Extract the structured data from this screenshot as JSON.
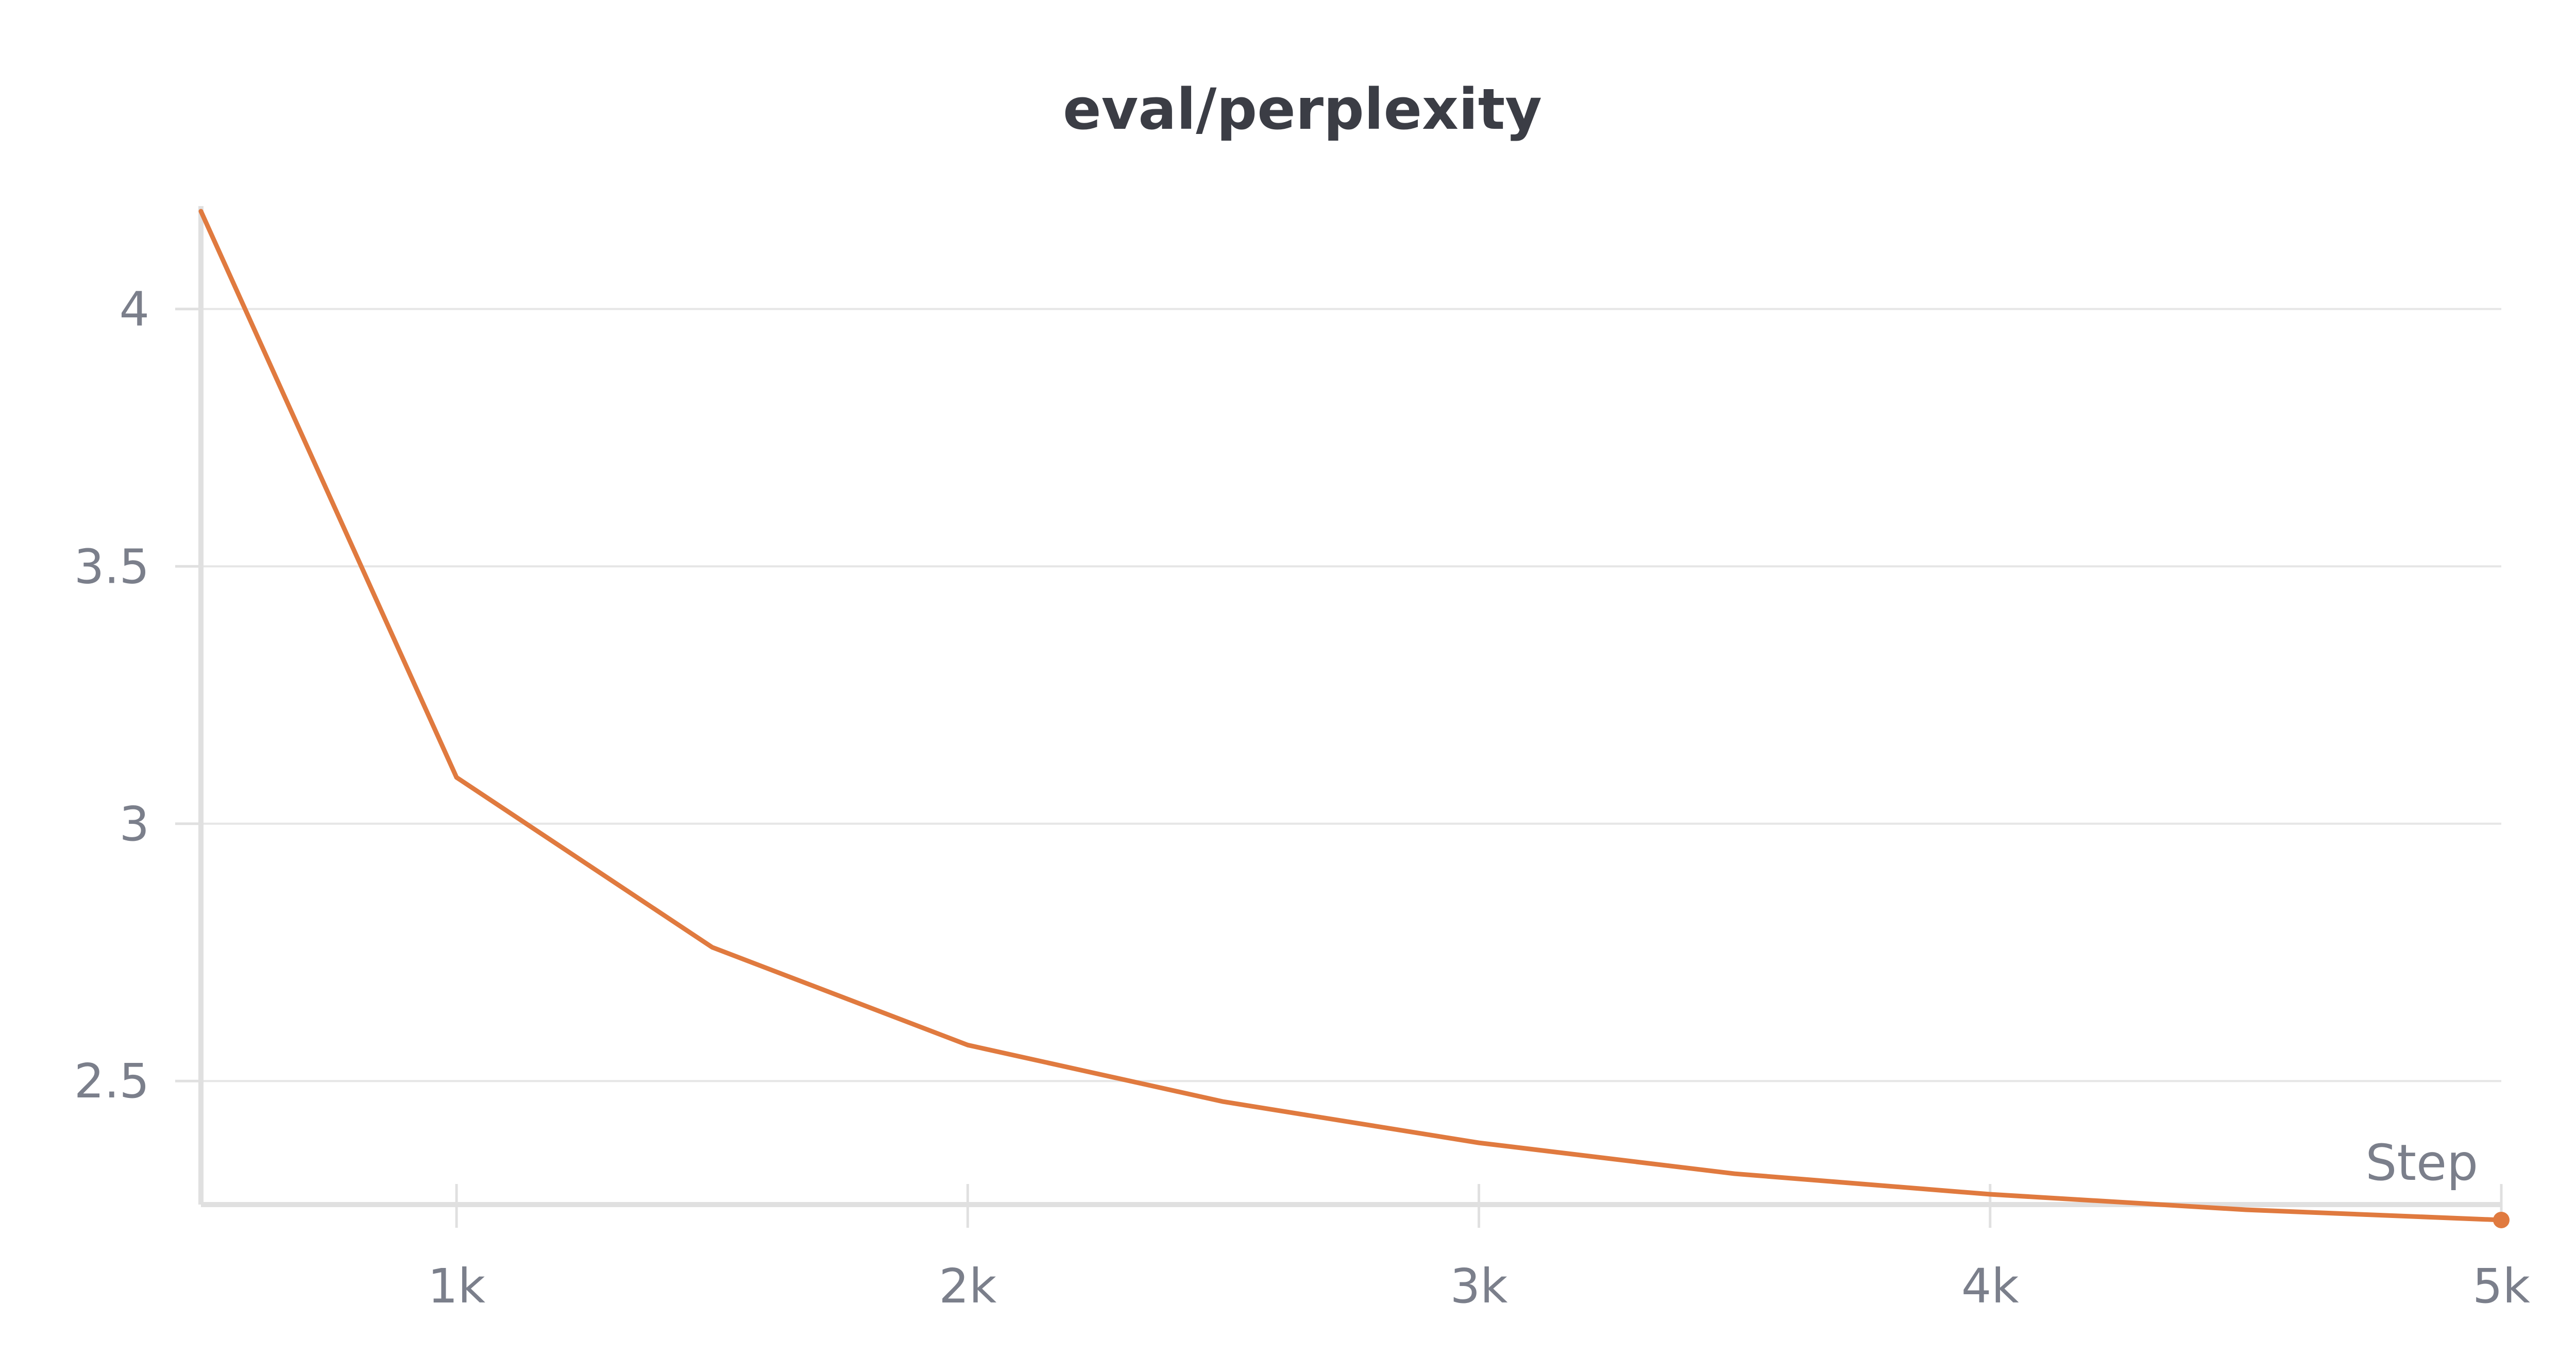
{
  "chart_data": {
    "type": "line",
    "title": "eval/perplexity",
    "xlabel": "Step",
    "ylabel": "",
    "xlim": [
      500,
      5000
    ],
    "ylim": [
      2.26,
      4.2
    ],
    "x_ticks": [
      1000,
      2000,
      3000,
      4000,
      5000
    ],
    "x_tick_labels": [
      "1k",
      "2k",
      "3k",
      "4k",
      "5k"
    ],
    "y_ticks": [
      2.5,
      3,
      3.5,
      4
    ],
    "y_tick_labels": [
      "2.5",
      "3",
      "3.5",
      "4"
    ],
    "grid": true,
    "legend": "none",
    "series": [
      {
        "color": "#e07a3f",
        "x": [
          500,
          1000,
          1500,
          2000,
          2500,
          3000,
          3500,
          4000,
          4500,
          5000
        ],
        "y": [
          4.19,
          3.09,
          2.76,
          2.57,
          2.46,
          2.38,
          2.32,
          2.28,
          2.25,
          2.23
        ]
      }
    ]
  },
  "colors": {
    "line": "#e07a3f",
    "grid": "#e6e6e6",
    "axis": "#e0e0e0",
    "tick_text": "#7b7f8b",
    "title_text": "#3b3d45"
  }
}
